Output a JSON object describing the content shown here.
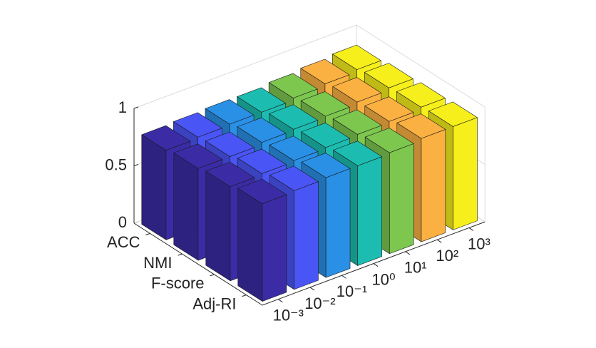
{
  "chart_data": {
    "type": "bar3",
    "categories": [
      "10⁻³",
      "10⁻²",
      "10⁻¹",
      "10⁰",
      "10¹",
      "10²",
      "10³"
    ],
    "colors": [
      "#3b2ca6",
      "#4a55f6",
      "#2a90e6",
      "#1cbdb0",
      "#7dc74f",
      "#fbb142",
      "#f6ef1c"
    ],
    "series": [
      {
        "name": "ACC",
        "values": [
          0.78,
          0.79,
          0.8,
          0.8,
          0.82,
          0.84,
          0.86
        ]
      },
      {
        "name": "NMI",
        "values": [
          0.8,
          0.8,
          0.82,
          0.83,
          0.84,
          0.86,
          0.88
        ]
      },
      {
        "name": "F-score",
        "values": [
          0.82,
          0.83,
          0.84,
          0.85,
          0.86,
          0.87,
          0.89
        ]
      },
      {
        "name": "Adj-RI",
        "values": [
          0.85,
          0.86,
          0.87,
          0.87,
          0.88,
          0.9,
          0.9
        ]
      }
    ],
    "zlim": [
      0,
      1
    ],
    "zticks": [
      0,
      0.5,
      1
    ],
    "grid": true
  }
}
